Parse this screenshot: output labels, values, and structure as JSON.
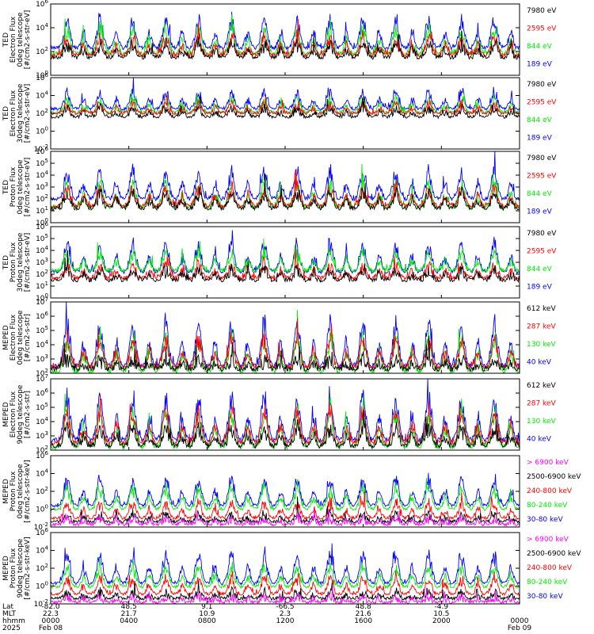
{
  "chart_data": [
    {
      "type": "line",
      "title": "",
      "ylabel": [
        "TED",
        "Electron Flux",
        "0deg telescope",
        "[#/cm2-s-str-eV]"
      ],
      "ylim_exp": [
        0,
        6
      ],
      "ytick_labels": [
        "10^0",
        "10^2",
        "10^4",
        "10^6"
      ],
      "series": [
        {
          "name": "7980 eV",
          "color": "#000000",
          "base": 1.5,
          "peak": 2.7
        },
        {
          "name": "2595 eV",
          "color": "#ff0000",
          "base": 1.7,
          "peak": 3.2
        },
        {
          "name": "844 eV",
          "color": "#00ee00",
          "base": 1.8,
          "peak": 4.0
        },
        {
          "name": "189 eV",
          "color": "#0000ff",
          "base": 2.3,
          "peak": 4.7
        }
      ]
    },
    {
      "type": "line",
      "title": "",
      "ylabel": [
        "TED",
        "Electron Flux",
        "30deg telescope",
        "[#/cm2-s-str-eV]"
      ],
      "ylim_exp": [
        -2,
        6
      ],
      "ytick_labels": [
        "10^-2",
        "10^0",
        "10^2",
        "10^4",
        "10^6"
      ],
      "series": [
        {
          "name": "7980 eV",
          "color": "#000000",
          "base": 1.6,
          "peak": 2.7
        },
        {
          "name": "2595 eV",
          "color": "#ff0000",
          "base": 2.0,
          "peak": 3.1
        },
        {
          "name": "844 eV",
          "color": "#00ee00",
          "base": 2.1,
          "peak": 3.6
        },
        {
          "name": "189 eV",
          "color": "#0000ff",
          "base": 2.5,
          "peak": 4.4
        }
      ]
    },
    {
      "type": "line",
      "title": "",
      "ylabel": [
        "TED",
        "Proton Flux",
        "0deg telescope",
        "[#/cm2-s-str-eV]"
      ],
      "ylim_exp": [
        0,
        6
      ],
      "ytick_labels": [
        "10^0",
        "10^1",
        "10^2",
        "10^3",
        "10^4",
        "10^5",
        "10^6"
      ],
      "series": [
        {
          "name": "7980 eV",
          "color": "#000000",
          "base": 1.2,
          "peak": 2.6
        },
        {
          "name": "2595 eV",
          "color": "#ff0000",
          "base": 1.4,
          "peak": 3.0
        },
        {
          "name": "844 eV",
          "color": "#00ee00",
          "base": 1.3,
          "peak": 3.4
        },
        {
          "name": "189 eV",
          "color": "#0000ff",
          "base": 2.0,
          "peak": 4.4
        }
      ]
    },
    {
      "type": "line",
      "title": "",
      "ylabel": [
        "TED",
        "Proton Flux",
        "30deg telescope",
        "[#/cm2-s-str-eV]"
      ],
      "ylim_exp": [
        0,
        6
      ],
      "ytick_labels": [
        "10^0",
        "10^1",
        "10^2",
        "10^3",
        "10^4",
        "10^5",
        "10^6"
      ],
      "series": [
        {
          "name": "7980 eV",
          "color": "#000000",
          "base": 1.5,
          "peak": 2.4
        },
        {
          "name": "2595 eV",
          "color": "#ff0000",
          "base": 1.7,
          "peak": 2.8
        },
        {
          "name": "844 eV",
          "color": "#00ee00",
          "base": 2.3,
          "peak": 3.8
        },
        {
          "name": "189 eV",
          "color": "#0000ff",
          "base": 2.2,
          "peak": 4.6
        }
      ]
    },
    {
      "type": "line",
      "title": "",
      "ylabel": [
        "MEPED",
        "Electron Flux",
        "0deg telescope",
        "[#/cm2-s-str]"
      ],
      "ylim_exp": [
        2,
        7
      ],
      "ytick_labels": [
        "10^2",
        "10^3",
        "10^4",
        "10^5",
        "10^6",
        "10^7"
      ],
      "series": [
        {
          "name": "612 keV",
          "color": "#000000",
          "base": 2.3,
          "peak": 3.0
        },
        {
          "name": "287 keV",
          "color": "#ff0000",
          "base": 2.4,
          "peak": 4.5
        },
        {
          "name": "130 keV",
          "color": "#00ee00",
          "base": 2.1,
          "peak": 4.6
        },
        {
          "name": "40 keV",
          "color": "#0000ff",
          "base": 2.5,
          "peak": 5.6
        }
      ]
    },
    {
      "type": "line",
      "title": "",
      "ylabel": [
        "MEPED",
        "Electron Flux",
        "90deg telescope",
        "[#/cm2-s-str]"
      ],
      "ylim_exp": [
        2,
        7
      ],
      "ytick_labels": [
        "10^2",
        "10^3",
        "10^4",
        "10^5",
        "10^6",
        "10^7"
      ],
      "series": [
        {
          "name": "612 keV",
          "color": "#000000",
          "base": 2.3,
          "peak": 3.6
        },
        {
          "name": "287 keV",
          "color": "#ff0000",
          "base": 2.5,
          "peak": 4.8
        },
        {
          "name": "130 keV",
          "color": "#00ee00",
          "base": 2.2,
          "peak": 4.9
        },
        {
          "name": "40 keV",
          "color": "#0000ff",
          "base": 2.7,
          "peak": 5.8
        }
      ]
    },
    {
      "type": "line",
      "title": "",
      "ylabel": [
        "MEPED",
        "Proton Flux",
        "0deg telescope",
        "[#/cm2-s-str-keV]"
      ],
      "ylim_exp": [
        -2,
        6
      ],
      "ytick_labels": [
        "10^-2",
        "10^0",
        "10^2",
        "10^4",
        "10^6"
      ],
      "series": [
        {
          "name": "> 6900 keV",
          "color": "#ff00ff",
          "base": -1.7,
          "peak": -1.0
        },
        {
          "name": "2500-6900 keV",
          "color": "#000000",
          "base": -1.4,
          "peak": -0.6
        },
        {
          "name": "240-800 keV",
          "color": "#ff0000",
          "base": -1.0,
          "peak": 0.8
        },
        {
          "name": "80-240 keV",
          "color": "#00ee00",
          "base": 0.0,
          "peak": 2.5
        },
        {
          "name": "30-80 keV",
          "color": "#0000ff",
          "base": 0.4,
          "peak": 3.5
        }
      ]
    },
    {
      "type": "line",
      "title": "",
      "ylabel": [
        "MEPED",
        "Proton Flux",
        "90deg telescope",
        "[#/cm2-s-str-keV]"
      ],
      "ylim_exp": [
        -2,
        6
      ],
      "ytick_labels": [
        "10^-2",
        "10^0",
        "10^2",
        "10^4",
        "10^6"
      ],
      "series": [
        {
          "name": "> 6900 keV",
          "color": "#ff00ff",
          "base": -1.8,
          "peak": -1.2
        },
        {
          "name": "2500-6900 keV",
          "color": "#000000",
          "base": -1.4,
          "peak": -0.7
        },
        {
          "name": "240-800 keV",
          "color": "#ff0000",
          "base": -0.9,
          "peak": 1.0
        },
        {
          "name": "80-240 keV",
          "color": "#00ee00",
          "base": -0.1,
          "peak": 2.3
        },
        {
          "name": "30-80 keV",
          "color": "#0000ff",
          "base": 0.3,
          "peak": 3.7
        }
      ]
    }
  ],
  "x_axis": {
    "row_labels": [
      "Lat",
      "MLT",
      "hhmm",
      "2025"
    ],
    "ticks": [
      {
        "lat": "-82.0",
        "mlt": "22.3",
        "hhmm": "0000",
        "date": "Feb 08"
      },
      {
        "lat": "48.5",
        "mlt": "21.7",
        "hhmm": "0400",
        "date": ""
      },
      {
        "lat": "9.1",
        "mlt": "10.9",
        "hhmm": "0800",
        "date": ""
      },
      {
        "lat": "-66.5",
        "mlt": "2.3",
        "hhmm": "1200",
        "date": ""
      },
      {
        "lat": "48.8",
        "mlt": "21.6",
        "hhmm": "1600",
        "date": ""
      },
      {
        "lat": "-4.9",
        "mlt": "10.5",
        "hhmm": "2000",
        "date": ""
      },
      {
        "lat": "",
        "mlt": "",
        "hhmm": "0000",
        "date": "Feb 09"
      }
    ]
  }
}
